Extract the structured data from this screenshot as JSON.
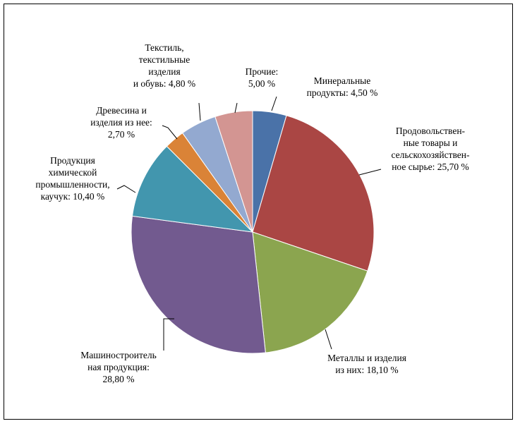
{
  "chart_data": {
    "type": "pie",
    "title": "",
    "start_angle_deg": 0,
    "direction": "clockwise",
    "slices": [
      {
        "name": "Минеральные продукты",
        "value": 4.5,
        "color": "#4A72A8",
        "label_lines": [
          "Минеральные",
          "продукты: 4,50 %"
        ]
      },
      {
        "name": "Продовольственные товары и сельскохозяйственное сырье",
        "value": 25.7,
        "color": "#AA4644",
        "label_lines": [
          "Продовольствен-",
          "ные товары и",
          "сельскохозяйствен-",
          "ное сырье: 25,70 %"
        ]
      },
      {
        "name": "Металлы и изделия из них",
        "value": 18.1,
        "color": "#8BA54F",
        "label_lines": [
          "Металлы и изделия",
          "из них: 18,10 %"
        ]
      },
      {
        "name": "Машиностроительная продукция",
        "value": 28.8,
        "color": "#725A8F",
        "label_lines": [
          "Машиностроитель",
          "ная продукция:",
          "28,80 %"
        ]
      },
      {
        "name": "Продукция химической промышленности, каучук",
        "value": 10.4,
        "color": "#4296AE",
        "label_lines": [
          "Продукция",
          "химической",
          "промышленности,",
          "каучук: 10,40 %"
        ]
      },
      {
        "name": "Древесина и изделия из нее",
        "value": 2.7,
        "color": "#DA8337",
        "label_lines": [
          "Древесина и",
          "изделия из нее:",
          "2,70 %"
        ]
      },
      {
        "name": "Текстиль, текстильные изделия и обувь",
        "value": 4.8,
        "color": "#93A9D0",
        "label_lines": [
          "Текстиль,",
          "текстильные",
          "изделия",
          "и обувь: 4,80 %"
        ]
      },
      {
        "name": "Прочие",
        "value": 5.0,
        "color": "#D39592",
        "label_lines": [
          "Прочие:",
          "5,00 %"
        ]
      }
    ],
    "legend": "none"
  }
}
